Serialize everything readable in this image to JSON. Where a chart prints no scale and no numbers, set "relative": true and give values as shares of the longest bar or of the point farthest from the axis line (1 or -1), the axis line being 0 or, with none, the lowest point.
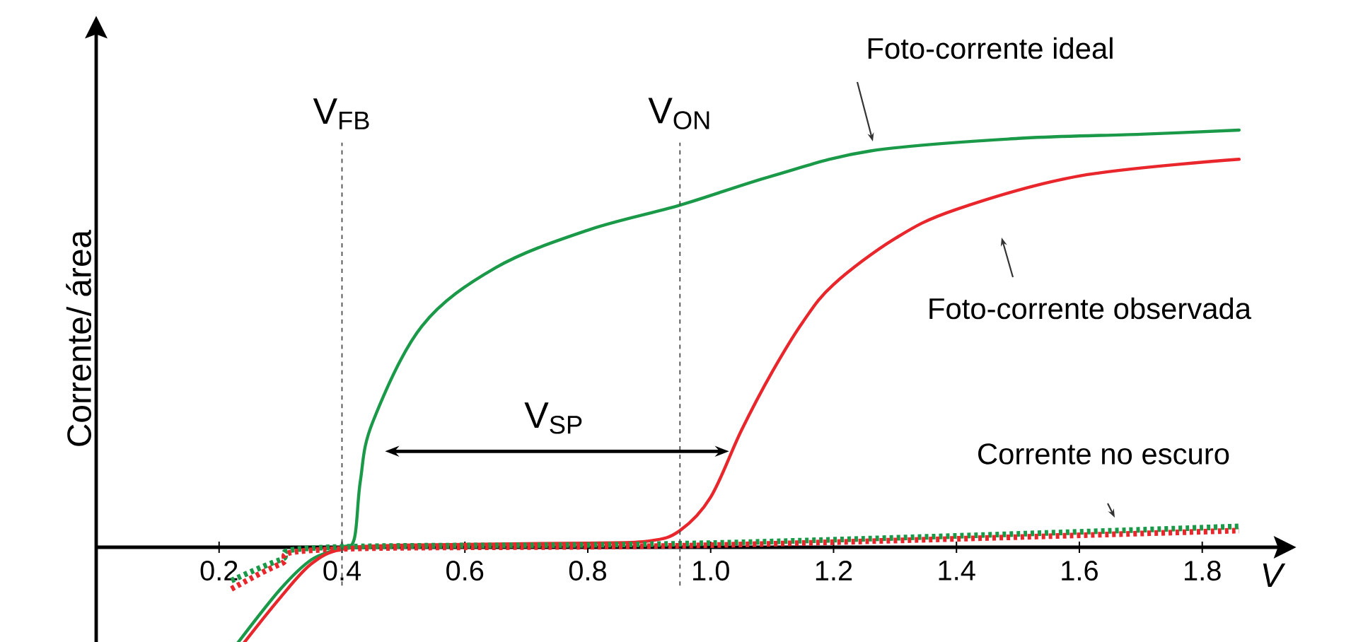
{
  "chart_data": {
    "type": "line",
    "relative": true,
    "xlabel": "V",
    "ylabel": "Corrente/ área",
    "tick_labels": "x",
    "xlim": [
      0,
      1.93
    ],
    "xticks": [
      {
        "value": 0.2,
        "label": "0.2"
      },
      {
        "value": 0.4,
        "label": "0.4"
      },
      {
        "value": 0.6,
        "label": "0.6"
      },
      {
        "value": 0.8,
        "label": "0.8"
      },
      {
        "value": 1.0,
        "label": "1.0"
      },
      {
        "value": 1.2,
        "label": "1.2"
      },
      {
        "value": 1.4,
        "label": "1.4"
      },
      {
        "value": 1.6,
        "label": "1.6"
      },
      {
        "value": 1.8,
        "label": "1.8"
      }
    ],
    "series": [
      {
        "name": "Foto-corrente ideal",
        "color": "#1a9a48",
        "line_style": "solid",
        "x": [
          0.23,
          0.3,
          0.35,
          0.4,
          0.42,
          0.43,
          0.45,
          0.53,
          0.65,
          0.8,
          0.95,
          1.1,
          1.26,
          1.5,
          1.7,
          1.86
        ],
        "values": [
          -0.23,
          -0.1,
          -0.03,
          0,
          0.02,
          0.16,
          0.3,
          0.53,
          0.67,
          0.76,
          0.82,
          0.89,
          0.95,
          0.98,
          0.99,
          1.0
        ]
      },
      {
        "name": "Foto-corrente observada",
        "color": "#e8262c",
        "line_style": "solid",
        "x": [
          0.24,
          0.3,
          0.35,
          0.4,
          0.5,
          0.8,
          0.9,
          0.95,
          1.0,
          1.05,
          1.1,
          1.15,
          1.2,
          1.3,
          1.4,
          1.6,
          1.86
        ],
        "values": [
          -0.23,
          -0.12,
          -0.04,
          -0.005,
          0.005,
          0.01,
          0.015,
          0.04,
          0.12,
          0.28,
          0.42,
          0.54,
          0.63,
          0.74,
          0.81,
          0.89,
          0.93
        ]
      },
      {
        "name": "Corrente no escuro",
        "color": "#1a9a48",
        "line_style": "dotted",
        "x": [
          0.22,
          0.3,
          0.38,
          1.0,
          1.86
        ],
        "values": [
          -0.08,
          -0.03,
          0,
          0.01,
          0.05
        ]
      },
      {
        "color": "#e8262c",
        "line_style": "dotted",
        "x": [
          0.22,
          0.3,
          0.38,
          1.0,
          1.86
        ],
        "values": [
          -0.1,
          -0.04,
          -0.005,
          0.005,
          0.04
        ]
      }
    ],
    "ref_lines": [
      {
        "axis": "x",
        "value": 0.4,
        "label": "V$_{FB}$",
        "line_style": "dashed"
      },
      {
        "axis": "x",
        "value": 0.95,
        "label": "V$_{ON}$",
        "line_style": "dashed"
      }
    ],
    "annotations": [
      "V$_{SP}$"
    ]
  }
}
